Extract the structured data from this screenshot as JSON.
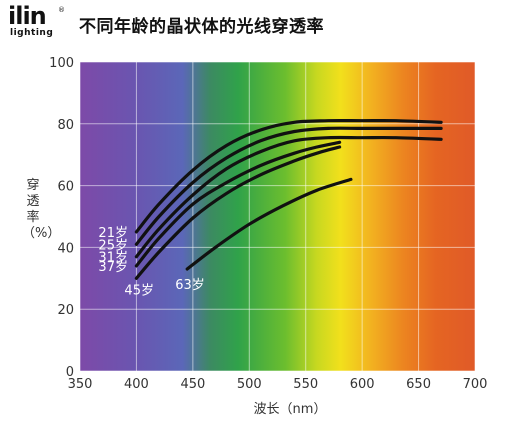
{
  "logo": {
    "main": "ilin",
    "sub": "lighting",
    "reg": "®"
  },
  "title": "不同年龄的晶状体的光线穿透率",
  "chart_data": {
    "type": "line",
    "title": "不同年龄的晶状体的光线穿透率",
    "xlabel": "波长（nm）",
    "ylabel": "穿透率（%）",
    "xlim": [
      350,
      700
    ],
    "ylim": [
      0,
      100
    ],
    "xticks": [
      350,
      400,
      450,
      500,
      550,
      600,
      650,
      700
    ],
    "yticks": [
      0,
      20,
      40,
      60,
      80,
      100
    ],
    "grid": true,
    "background": "visible spectrum gradient",
    "series": [
      {
        "name": "21岁",
        "x": [
          400,
          420,
          450,
          480,
          510,
          540,
          570,
          600,
          630,
          670
        ],
        "y": [
          45,
          54,
          65,
          73,
          78,
          80.5,
          81,
          81,
          81,
          80.5
        ]
      },
      {
        "name": "25岁",
        "x": [
          400,
          420,
          450,
          480,
          510,
          540,
          570,
          600,
          630,
          670
        ],
        "y": [
          41,
          50,
          61,
          69,
          74.5,
          77.5,
          78.5,
          78.5,
          78.5,
          78.5
        ]
      },
      {
        "name": "31岁",
        "x": [
          400,
          420,
          450,
          480,
          510,
          540,
          570,
          600,
          630,
          670
        ],
        "y": [
          37,
          46,
          57,
          65.5,
          71,
          74.5,
          75.5,
          75.5,
          75.5,
          75
        ]
      },
      {
        "name": "37岁",
        "x": [
          400,
          420,
          450,
          480,
          510,
          540,
          560,
          580
        ],
        "y": [
          34,
          43,
          54,
          61,
          66.5,
          70.5,
          72.5,
          74
        ]
      },
      {
        "name": "45岁",
        "x": [
          400,
          420,
          450,
          480,
          510,
          540,
          560,
          580
        ],
        "y": [
          30,
          38.5,
          49.5,
          57.5,
          63.5,
          68,
          70.5,
          72.5
        ]
      },
      {
        "name": "63岁",
        "x": [
          445,
          470,
          500,
          530,
          560,
          590
        ],
        "y": [
          33,
          40,
          47.5,
          53.5,
          58.5,
          62
        ]
      }
    ]
  }
}
